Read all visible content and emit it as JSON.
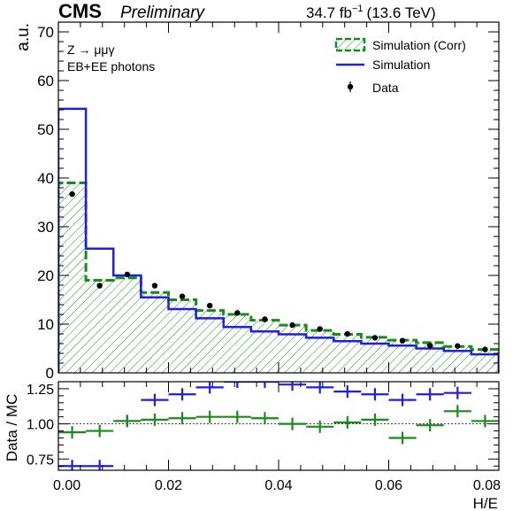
{
  "header": {
    "experiment": "CMS",
    "status": "Preliminary",
    "lumi_value": "34.7 fb",
    "lumi_exp": "−1",
    "energy": "(13.6 TeV)"
  },
  "annotations": {
    "process": "Z → μμγ",
    "selection": "EB+EE photons"
  },
  "legend": {
    "sim_corr": "Simulation (Corr)",
    "sim": "Simulation",
    "data": "Data"
  },
  "colors": {
    "sim": "#1f1fe0",
    "sim_corr": "#1a8a1a",
    "data": "#000000"
  },
  "chart_data": [
    {
      "type": "histogram",
      "panel": "main",
      "ylabel": "a.u.",
      "xlim": [
        0,
        0.08
      ],
      "ylim": [
        0,
        72
      ],
      "yticks": [
        0,
        10,
        20,
        30,
        40,
        50,
        60,
        70
      ],
      "bin_edges": [
        0,
        0.005,
        0.01,
        0.015,
        0.02,
        0.025,
        0.03,
        0.035,
        0.04,
        0.045,
        0.05,
        0.055,
        0.06,
        0.065,
        0.07,
        0.075,
        0.08
      ],
      "series": [
        {
          "name": "Simulation (Corr)",
          "style": "step-hatched",
          "values": [
            39.0,
            19.0,
            19.5,
            16.5,
            15.0,
            12.8,
            12.0,
            10.8,
            9.8,
            8.7,
            7.9,
            7.3,
            6.7,
            6.2,
            5.4,
            4.8
          ]
        },
        {
          "name": "Simulation",
          "style": "step",
          "values": [
            54.2,
            25.5,
            20.0,
            15.5,
            13.1,
            11.2,
            9.4,
            8.5,
            7.9,
            7.2,
            6.5,
            6.0,
            5.6,
            5.0,
            4.5,
            3.8
          ]
        },
        {
          "name": "Data",
          "style": "points",
          "values": [
            36.7,
            17.9,
            20.2,
            17.9,
            15.7,
            13.8,
            12.3,
            11.0,
            9.8,
            9.0,
            8.0,
            7.2,
            6.6,
            5.6,
            5.5,
            4.8
          ]
        }
      ]
    },
    {
      "type": "ratio",
      "panel": "ratio",
      "xlabel": "H/E",
      "ylabel": "Data / MC",
      "xlim": [
        0,
        0.08
      ],
      "ylim": [
        0.67,
        1.3
      ],
      "yticks": [
        0.75,
        1.0,
        1.25
      ],
      "xticks": [
        0,
        0.02,
        0.04,
        0.06,
        0.08
      ],
      "reference_line": 1.0,
      "bin_edges": [
        0,
        0.005,
        0.01,
        0.015,
        0.02,
        0.025,
        0.03,
        0.035,
        0.04,
        0.045,
        0.05,
        0.055,
        0.06,
        0.065,
        0.07,
        0.075,
        0.08
      ],
      "series": [
        {
          "name": "Data / Simulation",
          "values": [
            0.7,
            0.7,
            1.02,
            1.17,
            1.21,
            1.26,
            1.3,
            1.3,
            1.28,
            1.26,
            1.23,
            1.21,
            1.17,
            1.21,
            1.22,
            null
          ]
        },
        {
          "name": "Data / Simulation (Corr)",
          "values": [
            0.94,
            0.95,
            1.02,
            1.03,
            1.04,
            1.05,
            1.05,
            1.04,
            1.0,
            0.98,
            1.01,
            1.03,
            0.9,
            0.99,
            1.09,
            1.02
          ]
        }
      ]
    }
  ]
}
